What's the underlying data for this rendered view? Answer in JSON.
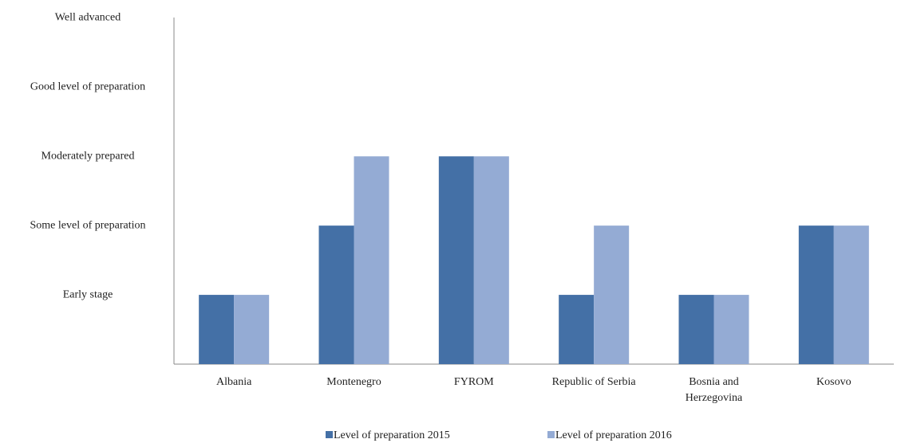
{
  "chart_data": {
    "type": "bar",
    "categories": [
      "Albania",
      "Montenegro",
      "FYROM",
      "Republic of Serbia",
      "Bosnia and Herzegovina",
      "Kosovo"
    ],
    "series": [
      {
        "name": "Level of preparation 2015",
        "color": "#4470a6",
        "values": [
          1,
          2,
          3,
          1,
          1,
          2
        ]
      },
      {
        "name": "Level of preparation 2016",
        "color": "#94abd4",
        "values": [
          1,
          3,
          3,
          2,
          1,
          2
        ]
      }
    ],
    "ylim": [
      0,
      5.2
    ],
    "yticks": [
      {
        "value": 1,
        "label": "Early stage"
      },
      {
        "value": 2,
        "label": "Some level of preparation"
      },
      {
        "value": 3,
        "label": "Moderately prepared"
      },
      {
        "value": 4,
        "label": "Good level of preparation"
      },
      {
        "value": 5,
        "label": "Well advanced"
      }
    ],
    "grid": false,
    "legend": "bottom"
  }
}
